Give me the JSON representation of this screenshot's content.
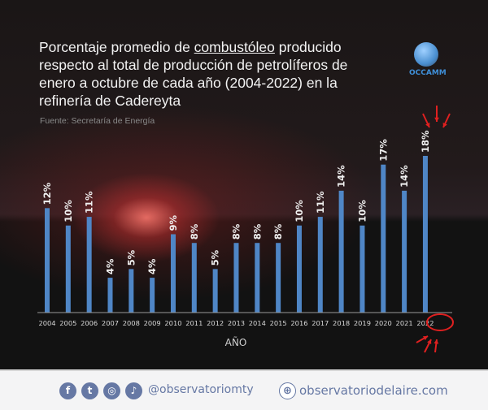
{
  "title_parts": {
    "before": "Porcentaje promedio de ",
    "underlined": "combustóleo",
    "after": " producido respecto al total de producción de petrolíferos de enero a octubre de cada año (2004-2022) en la refinería de Cadereyta"
  },
  "source": "Fuente:  Secretaría de Energía",
  "logo_text": "OCCAMM",
  "chart_data": {
    "type": "bar",
    "title": "Porcentaje promedio de combustóleo producido respecto al total de producción de petrolíferos de enero a octubre de cada año (2004-2022) en la refinería de Cadereyta",
    "xlabel": "AÑO",
    "ylabel": "",
    "categories": [
      "2004",
      "2005",
      "2006",
      "2007",
      "2008",
      "2009",
      "2010",
      "2011",
      "2012",
      "2013",
      "2014",
      "2015",
      "2016",
      "2017",
      "2018",
      "2019",
      "2020",
      "2021",
      "2022"
    ],
    "values": [
      12,
      10,
      11,
      4,
      5,
      4,
      9,
      8,
      5,
      8,
      8,
      8,
      10,
      11,
      14,
      10,
      17,
      14,
      18
    ],
    "data_labels": [
      "12%",
      "10%",
      "11%",
      "4%",
      "5%",
      "4%",
      "9%",
      "8%",
      "5%",
      "8%",
      "8%",
      "8%",
      "10%",
      "11%",
      "14%",
      "10%",
      "17%",
      "14%",
      "18%"
    ],
    "ylim": [
      0,
      18
    ],
    "grid": false,
    "bar_color": "#4f86c6",
    "highlight": {
      "category": "2022",
      "annotation_color": "#e02020"
    }
  },
  "footer": {
    "social_icons": [
      "facebook-icon",
      "twitter-icon",
      "instagram-icon",
      "tiktok-icon"
    ],
    "handle": "@observatoriomty",
    "website": "observatoriodelaire.com",
    "color": "#6678a4"
  }
}
